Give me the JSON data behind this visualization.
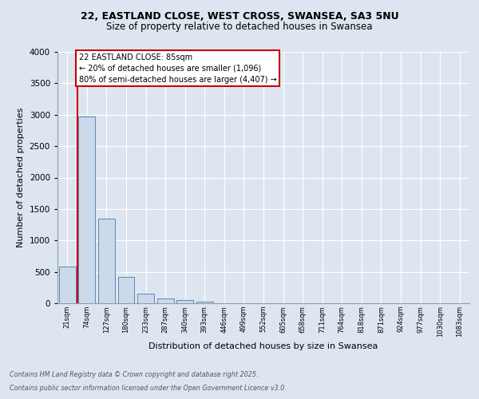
{
  "title_line1": "22, EASTLAND CLOSE, WEST CROSS, SWANSEA, SA3 5NU",
  "title_line2": "Size of property relative to detached houses in Swansea",
  "xlabel": "Distribution of detached houses by size in Swansea",
  "ylabel": "Number of detached properties",
  "footer_line1": "Contains HM Land Registry data © Crown copyright and database right 2025.",
  "footer_line2": "Contains public sector information licensed under the Open Government Licence v3.0.",
  "bin_labels": [
    "21sqm",
    "74sqm",
    "127sqm",
    "180sqm",
    "233sqm",
    "287sqm",
    "340sqm",
    "393sqm",
    "446sqm",
    "499sqm",
    "552sqm",
    "605sqm",
    "658sqm",
    "711sqm",
    "764sqm",
    "818sqm",
    "871sqm",
    "924sqm",
    "977sqm",
    "1030sqm",
    "1083sqm"
  ],
  "bar_values": [
    580,
    2970,
    1340,
    425,
    155,
    75,
    45,
    30,
    0,
    0,
    0,
    0,
    0,
    0,
    0,
    0,
    0,
    0,
    0,
    0
  ],
  "bar_color": "#ccd9ea",
  "bar_edgecolor": "#5588bb",
  "background_color": "#dde6f0",
  "grid_color": "#ffffff",
  "ylim": [
    0,
    4000
  ],
  "yticks": [
    0,
    500,
    1000,
    1500,
    2000,
    2500,
    3000,
    3500,
    4000
  ],
  "property_line_color": "#cc0000",
  "annotation_line1": "22 EASTLAND CLOSE: 85sqm",
  "annotation_line2": "← 20% of detached houses are smaller (1,096)",
  "annotation_line3": "80% of semi-detached houses are larger (4,407) →",
  "annotation_box_edgecolor": "#cc0000",
  "red_line_x": 0.5
}
